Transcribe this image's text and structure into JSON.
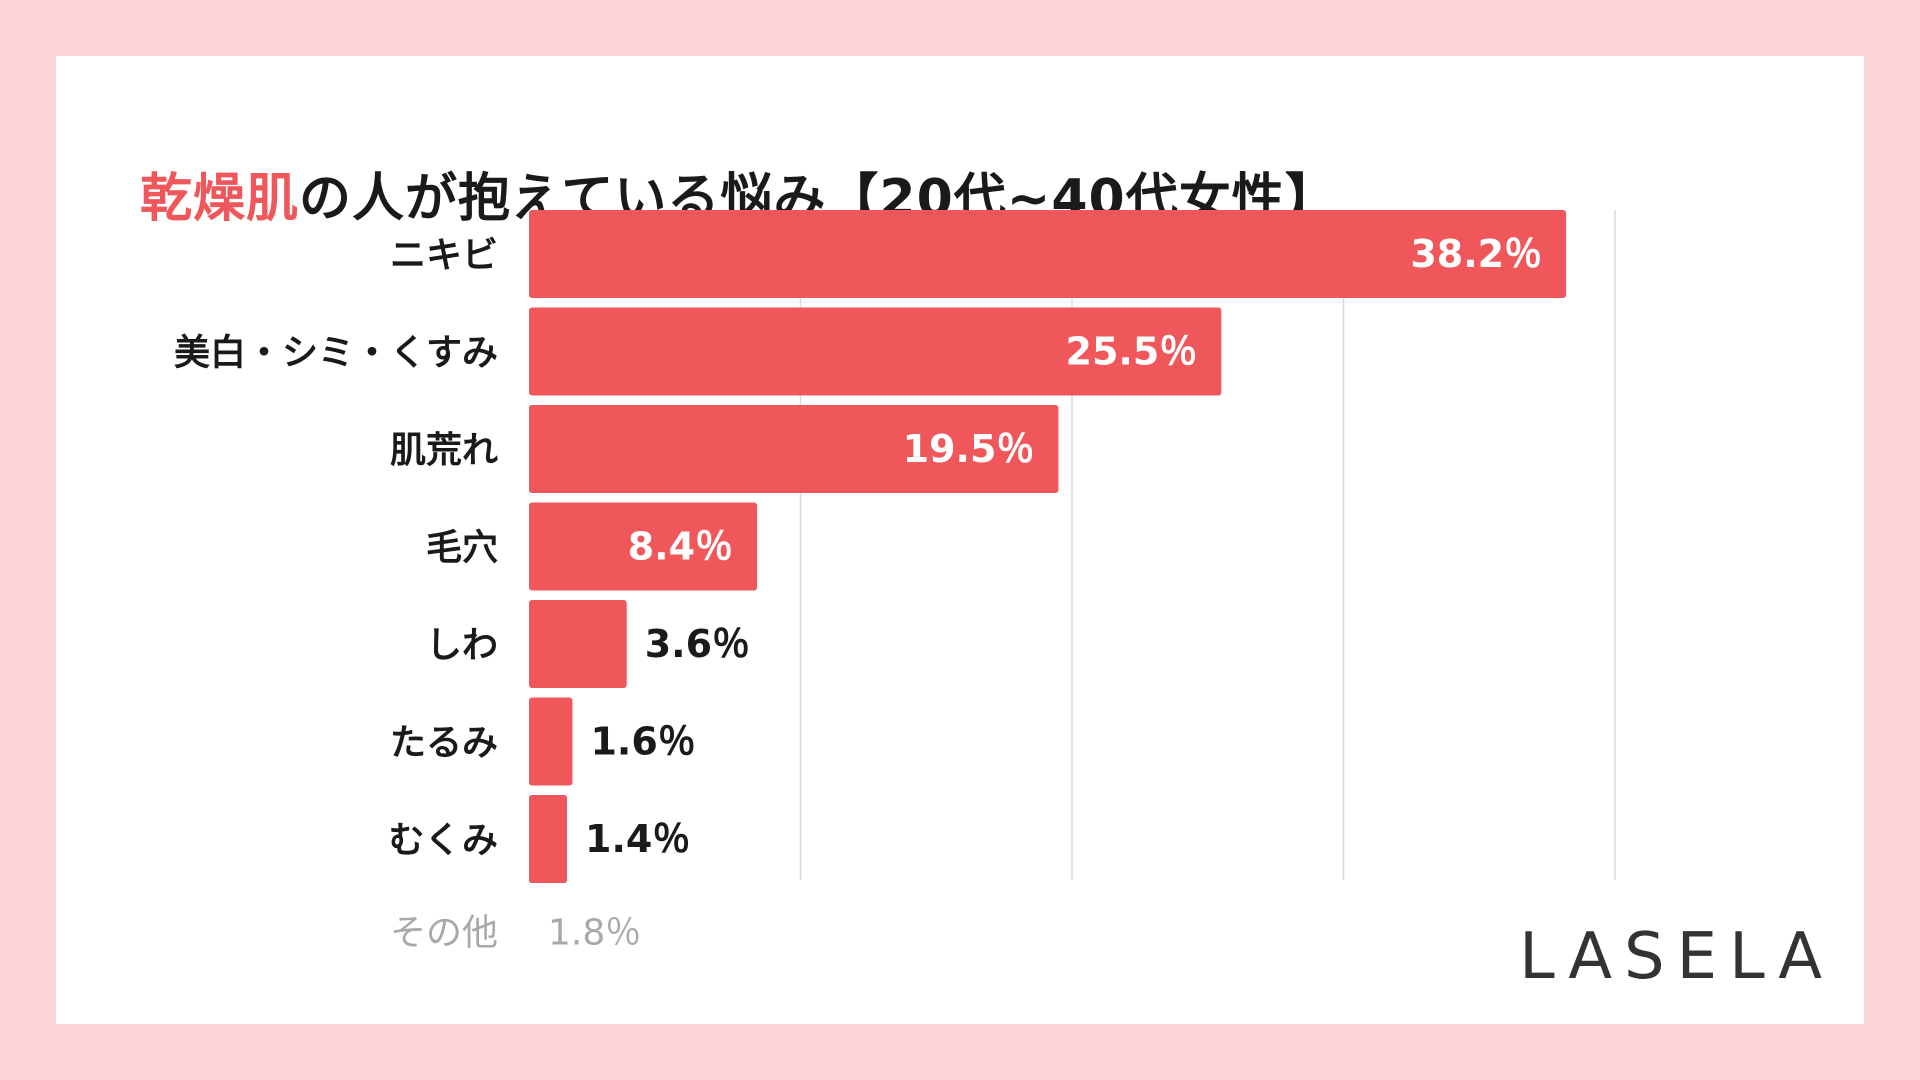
{
  "title": {
    "highlight": "乾燥肌",
    "rest": "の人が抱えている悩み【20代~40代女性】"
  },
  "chart_data": {
    "type": "bar",
    "orientation": "horizontal",
    "categories": [
      "ニキビ",
      "美白・シミ・くすみ",
      "肌荒れ",
      "毛穴",
      "しわ",
      "たるみ",
      "むくみ"
    ],
    "values": [
      38.2,
      25.5,
      19.5,
      8.4,
      3.6,
      1.6,
      1.4
    ],
    "value_labels": [
      "38.2％",
      "25.5％",
      "19.5％",
      "8.4％",
      "3.6％",
      "1.6％",
      "1.4％"
    ],
    "highlight_category": "ニキビ",
    "xlim": [
      0,
      40
    ],
    "grid": true,
    "other": {
      "label": "その他",
      "value": 1.8,
      "value_label": "1.8％"
    }
  },
  "colors": {
    "background": "#fcd4d5",
    "card": "#ffffff",
    "bar": "#f0575a",
    "highlight_text": "#f0575a",
    "text": "#1a1a1a",
    "muted": "#a9a9a9",
    "grid": "#d9d9d9"
  },
  "brand": {
    "logo": "LASELA"
  }
}
